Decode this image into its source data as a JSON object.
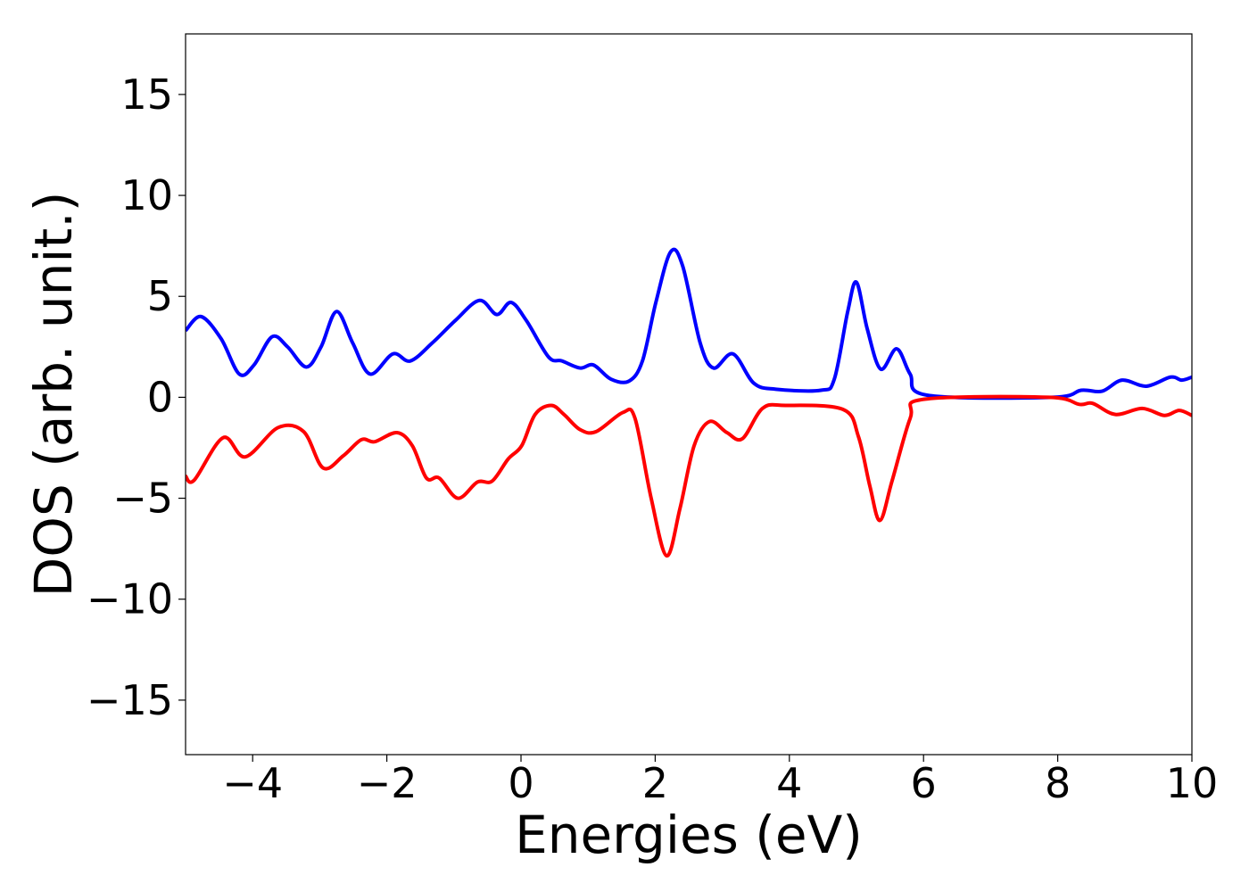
{
  "chart_data": {
    "type": "line",
    "xlabel": "Energies (eV)",
    "ylabel": "DOS (arb. unit.)",
    "xlim": [
      -5,
      10
    ],
    "ylim": [
      -17.7,
      18
    ],
    "xticks": [
      {
        "value": -4,
        "label": "−4"
      },
      {
        "value": -2,
        "label": "−2"
      },
      0,
      2,
      4,
      6,
      8,
      10
    ],
    "yticks": [
      {
        "value": -15,
        "label": "−15"
      },
      {
        "value": -10,
        "label": "−10"
      },
      {
        "value": -5,
        "label": "−5"
      },
      0,
      5,
      10,
      15
    ],
    "series": [
      {
        "color": "#0000ff",
        "x": [
          -5,
          -4.77,
          -4.47,
          -4.2,
          -3.98,
          -3.71,
          -3.48,
          -3.2,
          -2.98,
          -2.75,
          -2.51,
          -2.25,
          -1.91,
          -1.65,
          -1.32,
          -0.98,
          -0.62,
          -0.36,
          -0.15,
          0.08,
          0.41,
          0.61,
          0.88,
          1.08,
          1.34,
          1.61,
          1.81,
          2.01,
          2.23,
          2.41,
          2.67,
          2.87,
          3.16,
          3.47,
          3.8,
          4.47,
          4.67,
          4.87,
          5.0,
          5.16,
          5.36,
          5.6,
          5.8,
          6.06,
          7.93,
          8.35,
          8.66,
          8.96,
          9.32,
          9.68,
          9.85,
          10
        ],
        "values": [
          3.3,
          4.0,
          2.9,
          1.15,
          1.6,
          3.0,
          2.5,
          1.5,
          2.5,
          4.25,
          2.7,
          1.15,
          2.15,
          1.8,
          2.7,
          3.8,
          4.8,
          4.1,
          4.7,
          3.8,
          2.0,
          1.8,
          1.45,
          1.6,
          0.9,
          0.8,
          1.8,
          4.7,
          7.2,
          6.5,
          2.7,
          1.45,
          2.15,
          0.7,
          0.4,
          0.35,
          0.9,
          4.25,
          5.7,
          3.4,
          1.4,
          2.4,
          1.15,
          0.1,
          0,
          0.35,
          0.3,
          0.85,
          0.55,
          1.0,
          0.85,
          1.0
        ]
      },
      {
        "color": "#ff0000",
        "x": [
          -5,
          -4.87,
          -4.44,
          -4.11,
          -3.62,
          -3.24,
          -2.95,
          -2.65,
          -2.38,
          -2.18,
          -1.85,
          -1.62,
          -1.41,
          -1.22,
          -0.94,
          -0.65,
          -0.43,
          -0.19,
          0.01,
          0.21,
          0.45,
          0.64,
          0.88,
          1.12,
          1.52,
          1.7,
          1.94,
          2.17,
          2.37,
          2.58,
          2.81,
          3.07,
          3.3,
          3.6,
          3.94,
          4.8,
          5.03,
          5.2,
          5.35,
          5.53,
          5.8,
          6.0,
          7.86,
          8.32,
          8.52,
          8.86,
          9.26,
          9.59,
          9.81,
          10
        ],
        "values": [
          -3.9,
          -4.1,
          -2.0,
          -2.95,
          -1.5,
          -1.7,
          -3.5,
          -2.9,
          -2.1,
          -2.2,
          -1.75,
          -2.4,
          -4.0,
          -4.0,
          -5.0,
          -4.2,
          -4.15,
          -3.05,
          -2.4,
          -0.85,
          -0.4,
          -0.85,
          -1.6,
          -1.7,
          -0.75,
          -1.05,
          -5.0,
          -7.85,
          -5.5,
          -2.4,
          -1.2,
          -1.75,
          -2.05,
          -0.55,
          -0.4,
          -0.6,
          -1.95,
          -4.4,
          -6.1,
          -4.15,
          -1.05,
          -0.1,
          0,
          -0.35,
          -0.3,
          -0.85,
          -0.55,
          -0.9,
          -0.65,
          -0.9
        ]
      }
    ]
  }
}
